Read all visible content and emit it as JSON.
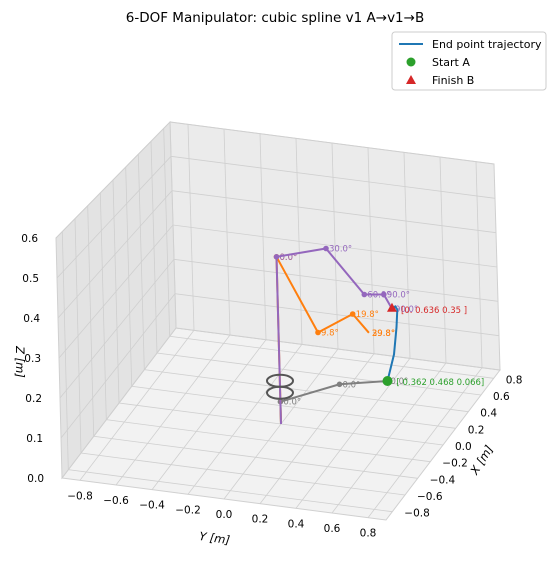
{
  "chart_data": {
    "type": "line-3d",
    "title": "6-DOF Manipulator: cubic spline v1 A→v1→B",
    "xlabel": "X [m]",
    "ylabel": "Y [m]",
    "zlabel": "Z [m]",
    "x_ticks": [
      "−0.8",
      "−0.6",
      "−0.4",
      "−0.2",
      "0.0",
      "0.2",
      "0.4",
      "0.6",
      "0.8"
    ],
    "y_ticks": [
      "−0.8",
      "−0.6",
      "−0.4",
      "−0.2",
      "0.0",
      "0.2",
      "0.4",
      "0.6",
      "0.8"
    ],
    "z_ticks": [
      "0.0",
      "0.1",
      "0.2",
      "0.3",
      "0.4",
      "0.5",
      "0.6"
    ],
    "grid": true,
    "legend_position": "top-right",
    "legend": [
      {
        "label": "End point trajectory",
        "kind": "line",
        "color": "#1f77b4"
      },
      {
        "label": "Start A",
        "kind": "circle",
        "color": "#2ca02c"
      },
      {
        "label": "Finish B",
        "kind": "triangle",
        "color": "#d62728"
      }
    ],
    "start_label": "[ 0.362  0.468  0.066]",
    "finish_label": "[0.   0.636  0.35 ]",
    "trajectory": [
      [
        0.362,
        0.468,
        0.066
      ],
      [
        0.33,
        0.52,
        0.15
      ],
      [
        0.27,
        0.56,
        0.24
      ],
      [
        0.18,
        0.6,
        0.31
      ],
      [
        0.08,
        0.625,
        0.34
      ],
      [
        0.0,
        0.636,
        0.35
      ]
    ],
    "arms": [
      {
        "name": "start",
        "color": "#7f7f7f",
        "joints": [
          [
            0.0,
            0.0,
            0.0
          ],
          [
            0.0,
            0.0,
            0.06
          ],
          [
            0.28,
            0.23,
            0.06
          ],
          [
            0.362,
            0.468,
            0.066
          ]
        ],
        "angles": [
          "0.0°",
          "0.0°",
          "0.0°"
        ]
      },
      {
        "name": "via",
        "color": "#ff7f0e",
        "joints": [
          [
            0.0,
            0.0,
            0.0
          ],
          [
            0.0,
            0.0,
            0.45
          ],
          [
            0.0,
            0.22,
            0.26
          ],
          [
            0.1,
            0.38,
            0.3
          ],
          [
            0.12,
            0.46,
            0.25
          ]
        ],
        "angles": [
          "0.0°",
          "9.8°",
          "19.8°",
          "29.8°",
          "39.8°"
        ]
      },
      {
        "name": "finish",
        "color": "#9467bd",
        "joints": [
          [
            0.0,
            0.0,
            0.0
          ],
          [
            0.0,
            0.0,
            0.45
          ],
          [
            -0.2,
            0.35,
            0.53
          ],
          [
            -0.1,
            0.52,
            0.4
          ],
          [
            -0.02,
            0.6,
            0.39
          ],
          [
            0.0,
            0.636,
            0.35
          ]
        ],
        "angles": [
          "0.0°",
          "30.0°",
          "60.0°",
          "90.0°",
          "90.0°"
        ]
      }
    ],
    "xlim": [
      -0.9,
      0.9
    ],
    "ylim": [
      -0.9,
      0.9
    ],
    "zlim": [
      0.0,
      0.6
    ]
  }
}
